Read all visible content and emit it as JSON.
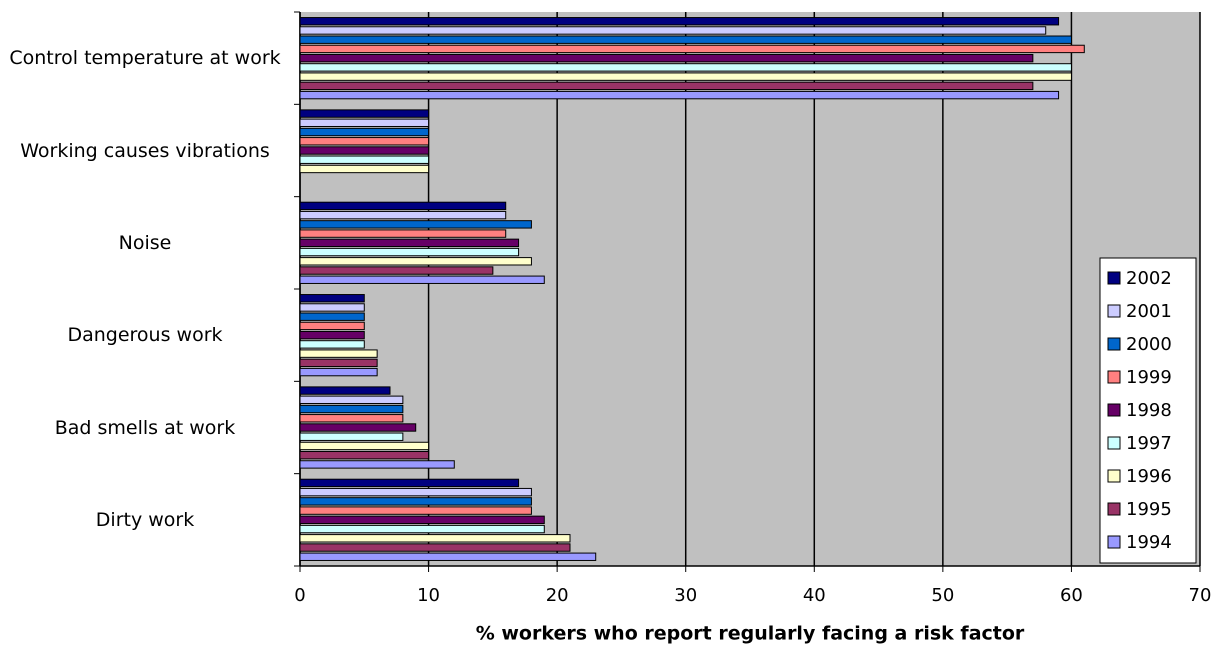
{
  "chart_data": {
    "type": "hbar",
    "xlabel": "% workers who report regularly facing a risk factor",
    "categories": [
      "Control temperature at work",
      "Working causes vibrations",
      "Noise",
      "Dangerous work",
      "Bad smells at work",
      "Dirty work"
    ],
    "series": [
      {
        "name": "2002",
        "color": "#000080",
        "values": [
          59,
          10,
          16,
          5,
          7,
          17
        ]
      },
      {
        "name": "2001",
        "color": "#ccccff",
        "values": [
          58,
          10,
          16,
          5,
          8,
          18
        ]
      },
      {
        "name": "2000",
        "color": "#0066cc",
        "values": [
          60,
          10,
          18,
          5,
          8,
          18
        ]
      },
      {
        "name": "1999",
        "color": "#ff8080",
        "values": [
          61,
          10,
          16,
          5,
          8,
          18
        ]
      },
      {
        "name": "1998",
        "color": "#660066",
        "values": [
          57,
          10,
          17,
          5,
          9,
          19
        ]
      },
      {
        "name": "1997",
        "color": "#ccffff",
        "values": [
          60,
          10,
          17,
          5,
          8,
          19
        ]
      },
      {
        "name": "1996",
        "color": "#ffffcc",
        "values": [
          60,
          10,
          18,
          6,
          10,
          21
        ]
      },
      {
        "name": "1995",
        "color": "#993366",
        "values": [
          57,
          null,
          15,
          6,
          10,
          21
        ]
      },
      {
        "name": "1994",
        "color": "#9999ff",
        "values": [
          59,
          null,
          19,
          6,
          12,
          23
        ]
      }
    ],
    "xlim": [
      0,
      70
    ],
    "xticks": [
      0,
      10,
      20,
      30,
      40,
      50,
      60,
      70
    ],
    "grid": true,
    "legend": "lower right",
    "plot_background": "#c0c0c0"
  }
}
